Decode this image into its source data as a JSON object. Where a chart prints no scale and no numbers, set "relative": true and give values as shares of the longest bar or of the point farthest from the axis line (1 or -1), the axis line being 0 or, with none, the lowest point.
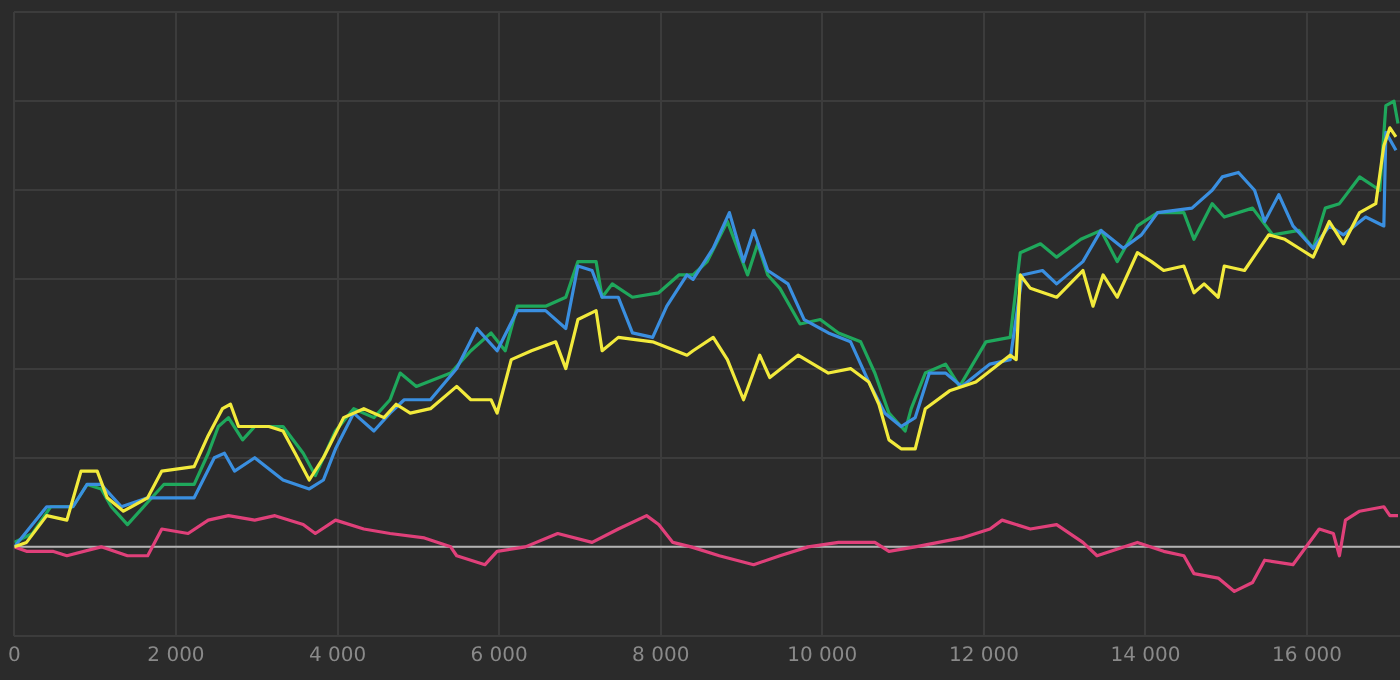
{
  "chart_data": {
    "type": "line",
    "relative": true,
    "grid": true,
    "legend": false,
    "marker": "none",
    "line_style": "solid",
    "xlim": [
      0,
      17150
    ],
    "xticks": [
      0,
      {
        "value": 2000,
        "label": "2 000"
      },
      {
        "value": 4000,
        "label": "4 000"
      },
      {
        "value": 6000,
        "label": "6 000"
      },
      {
        "value": 8000,
        "label": "8 000"
      },
      {
        "value": 10000,
        "label": "10 000"
      },
      {
        "value": 12000,
        "label": "12 000"
      },
      {
        "value": 14000,
        "label": "14 000"
      },
      {
        "value": 16000,
        "label": "16 000"
      }
    ],
    "ref_lines": [
      {
        "axis": "y",
        "value": 0,
        "color": "#b4b4b4"
      }
    ],
    "series": [
      {
        "color": "#f2ea3c",
        "x": [
          0,
          150,
          400,
          650,
          825,
          1025,
          1150,
          1350,
          1650,
          1825,
          2225,
          2400,
          2575,
          2675,
          2775,
          3150,
          3325,
          3475,
          3650,
          3825,
          4075,
          4325,
          4575,
          4725,
          4900,
          5150,
          5475,
          5650,
          5900,
          5975,
          6150,
          6400,
          6700,
          6825,
          6975,
          7200,
          7275,
          7475,
          7900,
          8325,
          8400,
          8650,
          8825,
          9025,
          9225,
          9350,
          9700,
          10075,
          10350,
          10575,
          10700,
          10825,
          10975,
          11150,
          11275,
          11575,
          11900,
          12325,
          12400,
          12450,
          12575,
          12900,
          13225,
          13350,
          13475,
          13650,
          13900,
          14075,
          14225,
          14475,
          14600,
          14725,
          14900,
          14975,
          15225,
          15525,
          15725,
          15900,
          16075,
          16275,
          16450,
          16650,
          16850,
          16950,
          17025,
          17100
        ],
        "values": [
          0,
          0.01,
          0.07,
          0.06,
          0.17,
          0.17,
          0.11,
          0.08,
          0.11,
          0.17,
          0.18,
          0.25,
          0.31,
          0.32,
          0.27,
          0.27,
          0.26,
          0.21,
          0.15,
          0.2,
          0.29,
          0.31,
          0.29,
          0.32,
          0.3,
          0.31,
          0.36,
          0.33,
          0.33,
          0.3,
          0.42,
          0.44,
          0.46,
          0.4,
          0.51,
          0.53,
          0.44,
          0.47,
          0.46,
          0.43,
          0.44,
          0.47,
          0.42,
          0.33,
          0.43,
          0.38,
          0.43,
          0.39,
          0.4,
          0.37,
          0.32,
          0.24,
          0.22,
          0.22,
          0.31,
          0.35,
          0.37,
          0.43,
          0.42,
          0.61,
          0.58,
          0.56,
          0.62,
          0.54,
          0.61,
          0.56,
          0.66,
          0.64,
          0.62,
          0.63,
          0.57,
          0.59,
          0.56,
          0.63,
          0.62,
          0.7,
          0.69,
          0.67,
          0.65,
          0.73,
          0.68,
          0.75,
          0.77,
          0.9,
          0.94,
          0.92
        ]
      },
      {
        "color": "#3a8fe0",
        "x": [
          0,
          400,
          725,
          900,
          1075,
          1325,
          1650,
          1900,
          2225,
          2475,
          2600,
          2725,
          2975,
          3325,
          3650,
          3825,
          3975,
          4200,
          4450,
          4650,
          4825,
          5150,
          5475,
          5725,
          5975,
          6225,
          6575,
          6825,
          6975,
          7150,
          7275,
          7475,
          7650,
          7900,
          8075,
          8325,
          8400,
          8650,
          8850,
          9025,
          9150,
          9325,
          9575,
          9775,
          10075,
          10350,
          10575,
          10775,
          10975,
          11150,
          11325,
          11525,
          11725,
          12075,
          12325,
          12475,
          12725,
          12900,
          13225,
          13450,
          13725,
          13950,
          14150,
          14575,
          14825,
          14950,
          15150,
          15350,
          15475,
          15650,
          15825,
          16075,
          16275,
          16450,
          16725,
          16950,
          16975,
          17100
        ],
        "values": [
          0,
          0.09,
          0.09,
          0.14,
          0.14,
          0.09,
          0.11,
          0.11,
          0.11,
          0.2,
          0.21,
          0.17,
          0.2,
          0.15,
          0.13,
          0.15,
          0.22,
          0.3,
          0.26,
          0.3,
          0.33,
          0.33,
          0.4,
          0.49,
          0.44,
          0.53,
          0.53,
          0.49,
          0.63,
          0.62,
          0.56,
          0.56,
          0.48,
          0.47,
          0.54,
          0.61,
          0.6,
          0.67,
          0.75,
          0.64,
          0.71,
          0.62,
          0.59,
          0.51,
          0.48,
          0.46,
          0.37,
          0.3,
          0.27,
          0.29,
          0.39,
          0.39,
          0.36,
          0.41,
          0.42,
          0.61,
          0.62,
          0.59,
          0.64,
          0.71,
          0.67,
          0.7,
          0.75,
          0.76,
          0.8,
          0.83,
          0.84,
          0.8,
          0.73,
          0.79,
          0.72,
          0.67,
          0.72,
          0.7,
          0.74,
          0.72,
          0.93,
          0.89
        ]
      },
      {
        "color": "#1fa85c",
        "x": [
          0,
          225,
          450,
          725,
          900,
          1075,
          1200,
          1400,
          1650,
          1850,
          2225,
          2400,
          2525,
          2650,
          2825,
          2975,
          3325,
          3575,
          3725,
          3975,
          4200,
          4450,
          4650,
          4775,
          4975,
          5400,
          5650,
          5900,
          6075,
          6225,
          6575,
          6825,
          6975,
          7200,
          7275,
          7400,
          7650,
          7975,
          8225,
          8400,
          8575,
          8825,
          9075,
          9200,
          9325,
          9475,
          9725,
          9975,
          10200,
          10475,
          10650,
          10825,
          11025,
          11100,
          11275,
          11525,
          11700,
          12025,
          12325,
          12450,
          12700,
          12900,
          13200,
          13450,
          13650,
          13900,
          14150,
          14475,
          14600,
          14825,
          14975,
          15325,
          15575,
          15900,
          16075,
          16225,
          16400,
          16650,
          16900,
          16975,
          17075,
          17125
        ],
        "values": [
          0.01,
          0.03,
          0.09,
          0.09,
          0.14,
          0.13,
          0.09,
          0.05,
          0.1,
          0.14,
          0.14,
          0.21,
          0.27,
          0.29,
          0.24,
          0.27,
          0.27,
          0.21,
          0.16,
          0.26,
          0.31,
          0.29,
          0.33,
          0.39,
          0.36,
          0.39,
          0.44,
          0.48,
          0.44,
          0.54,
          0.54,
          0.56,
          0.64,
          0.64,
          0.56,
          0.59,
          0.56,
          0.57,
          0.61,
          0.61,
          0.64,
          0.73,
          0.61,
          0.68,
          0.61,
          0.58,
          0.5,
          0.51,
          0.48,
          0.46,
          0.39,
          0.3,
          0.26,
          0.31,
          0.39,
          0.41,
          0.36,
          0.46,
          0.47,
          0.66,
          0.68,
          0.65,
          0.69,
          0.71,
          0.64,
          0.72,
          0.75,
          0.75,
          0.69,
          0.77,
          0.74,
          0.76,
          0.7,
          0.71,
          0.67,
          0.76,
          0.77,
          0.83,
          0.8,
          0.99,
          1,
          0.95
        ]
      },
      {
        "color": "#e0407a",
        "x": [
          0,
          150,
          475,
          650,
          1075,
          1400,
          1650,
          1825,
          2150,
          2400,
          2650,
          2975,
          3225,
          3575,
          3725,
          3975,
          4325,
          4650,
          5075,
          5400,
          5475,
          5825,
          5975,
          6325,
          6725,
          7150,
          7475,
          7825,
          7975,
          8150,
          8375,
          8725,
          9150,
          9475,
          9825,
          10200,
          10650,
          10825,
          11150,
          11725,
          12075,
          12225,
          12575,
          12900,
          13225,
          13400,
          13900,
          14225,
          14475,
          14600,
          14900,
          15100,
          15325,
          15475,
          15825,
          16150,
          16325,
          16400,
          16475,
          16650,
          16950,
          17025,
          17125
        ],
        "values": [
          0,
          -0.01,
          -0.01,
          -0.02,
          0,
          -0.02,
          -0.02,
          0.04,
          0.03,
          0.06,
          0.07,
          0.06,
          0.07,
          0.05,
          0.03,
          0.06,
          0.04,
          0.03,
          0.02,
          0,
          -0.02,
          -0.04,
          -0.01,
          0,
          0.03,
          0.01,
          0.04,
          0.07,
          0.05,
          0.01,
          0,
          -0.02,
          -0.04,
          -0.02,
          0,
          0.01,
          0.01,
          -0.01,
          0,
          0.02,
          0.04,
          0.06,
          0.04,
          0.05,
          0.01,
          -0.02,
          0.01,
          -0.01,
          -0.02,
          -0.06,
          -0.07,
          -0.1,
          -0.08,
          -0.03,
          -0.04,
          0.04,
          0.03,
          -0.02,
          0.06,
          0.08,
          0.09,
          0.07,
          0.07
        ]
      }
    ]
  }
}
